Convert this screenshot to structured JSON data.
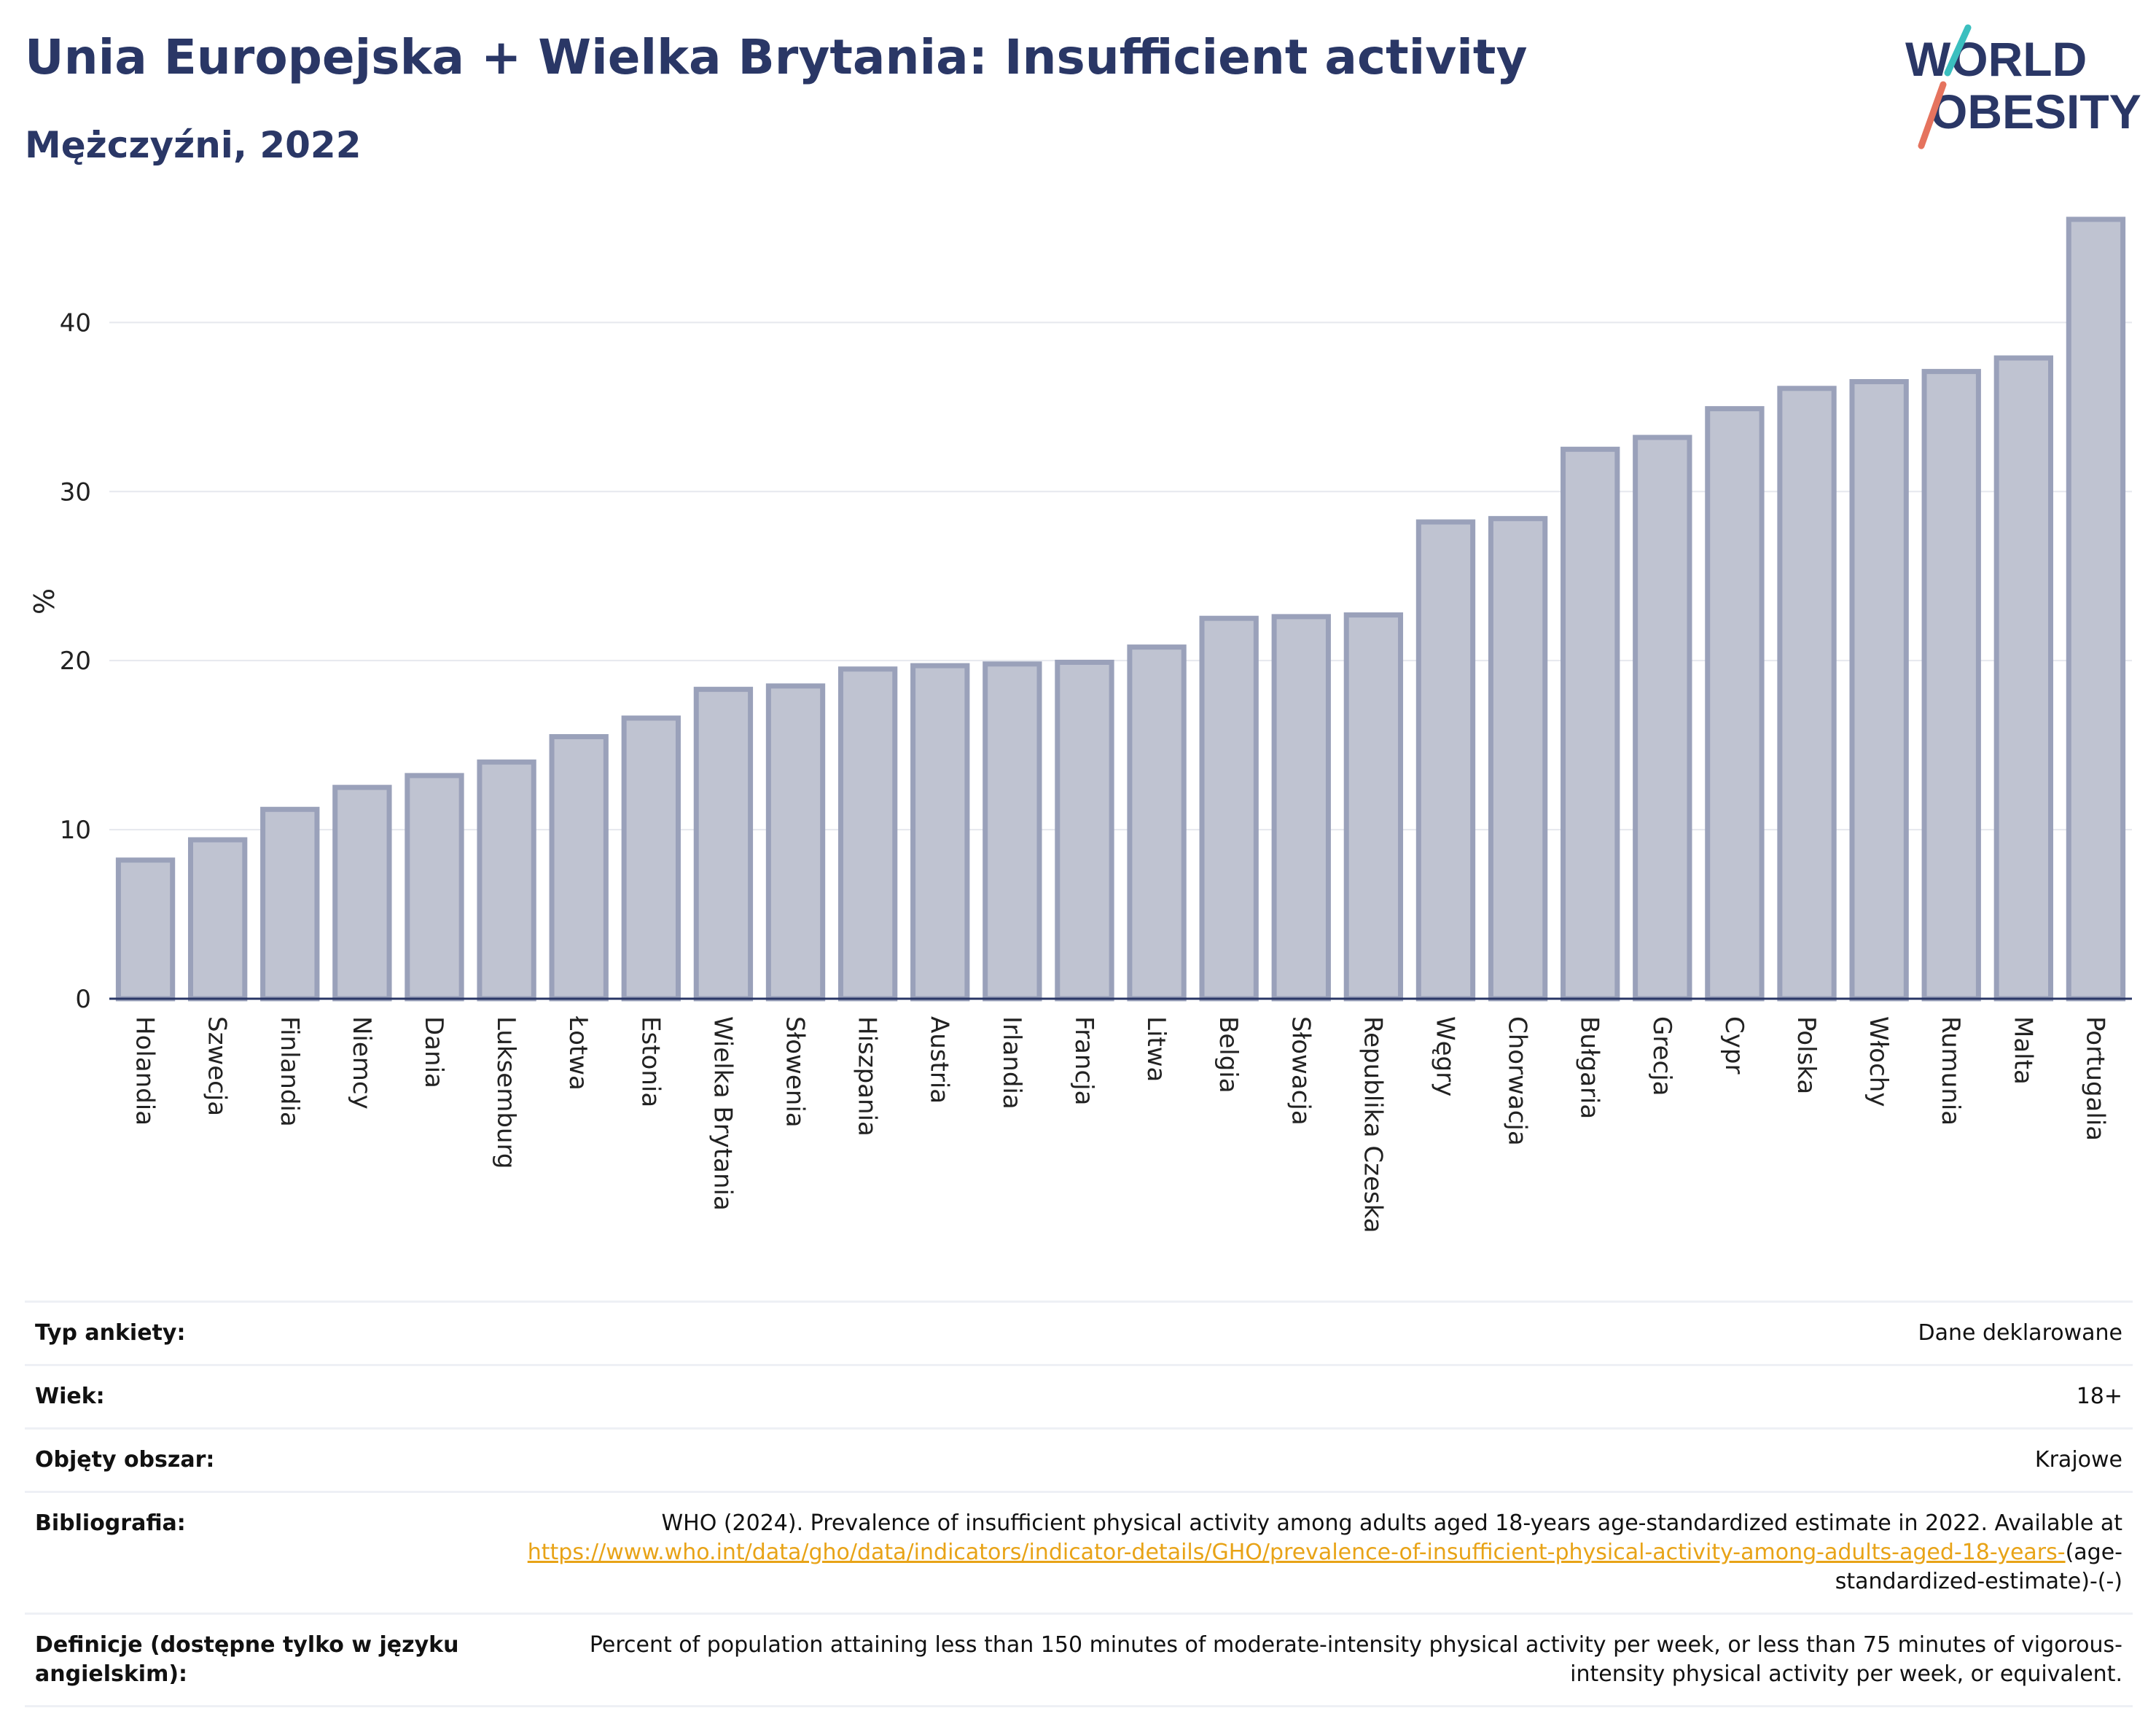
{
  "header": {
    "title": "Unia Europejska + Wielka Brytania: Insufficient activity",
    "subtitle": "Mężczyźni, 2022",
    "logo_text": "WORLD OBESITY"
  },
  "colors": {
    "title": "#2a3766",
    "bar_fill": "#bfc3d1",
    "bar_stroke": "#9aa1ba",
    "axis": "#2a3766",
    "grid": "#e6e8ee",
    "link": "#e8a317",
    "logo_teal": "#3bbfbf",
    "logo_coral": "#e5735e"
  },
  "chart_data": {
    "type": "bar",
    "ylabel": "%",
    "xlabel": "",
    "ylim": [
      0,
      47
    ],
    "yticks": [
      0,
      10,
      20,
      30,
      40
    ],
    "grid": true,
    "categories": [
      "Holandia",
      "Szwecja",
      "Finlandia",
      "Niemcy",
      "Dania",
      "Luksemburg",
      "Łotwa",
      "Estonia",
      "Wielka Brytania",
      "Słowenia",
      "Hiszpania",
      "Austria",
      "Irlandia",
      "Francja",
      "Litwa",
      "Belgia",
      "Słowacja",
      "Republika Czeska",
      "Węgry",
      "Chorwacja",
      "Bułgaria",
      "Grecja",
      "Cypr",
      "Polska",
      "Włochy",
      "Rumunia",
      "Malta",
      "Portugalia"
    ],
    "values": [
      8.2,
      9.4,
      11.2,
      12.5,
      13.2,
      14.0,
      15.5,
      16.6,
      18.3,
      18.5,
      19.5,
      19.7,
      19.8,
      19.9,
      20.8,
      22.5,
      22.6,
      22.7,
      28.2,
      28.4,
      32.5,
      33.2,
      34.9,
      36.1,
      36.5,
      37.1,
      37.9,
      46.1
    ]
  },
  "info": {
    "survey_label": "Typ ankiety:",
    "survey_value": "Dane deklarowane",
    "age_label": "Wiek:",
    "age_value": "18+",
    "area_label": "Objęty obszar:",
    "area_value": "Krajowe",
    "bib_label": "Bibliografia:",
    "bib_text": "WHO (2024). Prevalence of insufficient physical activity among adults aged 18-years age-standardized estimate in 2022. Available at",
    "bib_link": "https://www.who.int/data/gho/data/indicators/indicator-details/GHO/prevalence-of-insufficient-physical-activity-among-adults-aged-18-years-",
    "bib_suffix": "(age-standardized-estimate)-(-)",
    "def_label": "Definicje (dostępne tylko w języku angielskim):",
    "def_value": "Percent of population attaining less than 150 minutes of moderate-intensity physical activity per week, or less than 75 minutes of vigorous-intensity physical activity per week, or equivalent."
  }
}
